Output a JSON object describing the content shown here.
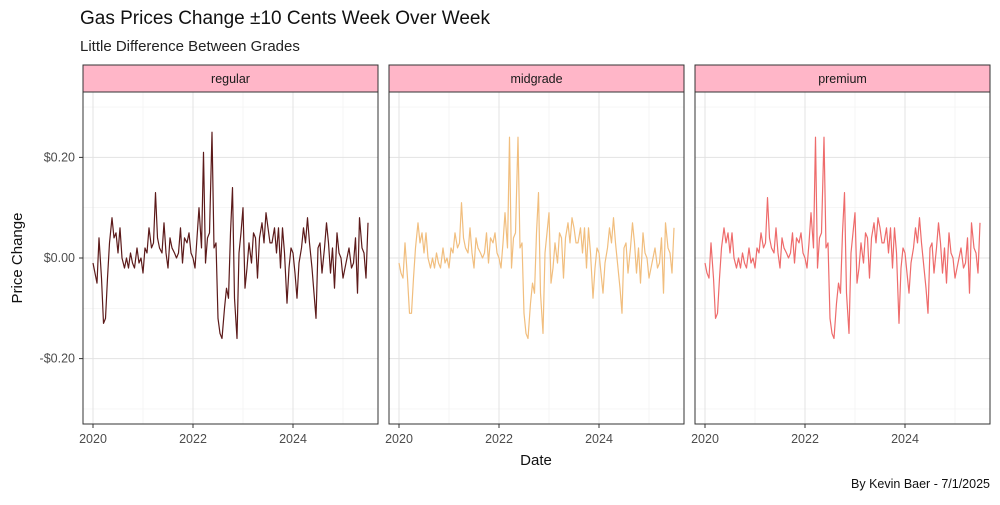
{
  "chart_data": {
    "type": "line",
    "title": "Gas Prices Change ±10 Cents Week Over Week",
    "subtitle": "Little Difference Between Grades",
    "xlabel": "Date",
    "ylabel": "Price Change",
    "caption": "By Kevin Baer - 7/1/2025",
    "ylim": [
      -0.33,
      0.33
    ],
    "xlim": [
      2019.8,
      2025.7
    ],
    "y_ticks": [
      -0.2,
      0.0,
      0.2
    ],
    "y_tick_labels": [
      "-$0.20",
      "$0.00",
      "$0.20"
    ],
    "x_ticks": [
      2020,
      2022,
      2024
    ],
    "x_tick_labels": [
      "2020",
      "2022",
      "2024"
    ],
    "grid": true,
    "strip_color": "#FFB6C8",
    "panels": [
      {
        "name": "regular",
        "color": "#5C1A1A",
        "x": [
          2020.0,
          2020.04,
          2020.08,
          2020.12,
          2020.17,
          2020.21,
          2020.25,
          2020.29,
          2020.33,
          2020.38,
          2020.42,
          2020.46,
          2020.5,
          2020.54,
          2020.58,
          2020.63,
          2020.67,
          2020.71,
          2020.75,
          2020.79,
          2020.83,
          2020.88,
          2020.92,
          2020.96,
          2021.0,
          2021.04,
          2021.08,
          2021.12,
          2021.17,
          2021.21,
          2021.25,
          2021.29,
          2021.33,
          2021.38,
          2021.42,
          2021.46,
          2021.5,
          2021.54,
          2021.58,
          2021.63,
          2021.67,
          2021.71,
          2021.75,
          2021.79,
          2021.83,
          2021.88,
          2021.92,
          2021.96,
          2022.0,
          2022.04,
          2022.08,
          2022.12,
          2022.17,
          2022.21,
          2022.25,
          2022.29,
          2022.33,
          2022.38,
          2022.42,
          2022.46,
          2022.5,
          2022.54,
          2022.58,
          2022.63,
          2022.67,
          2022.71,
          2022.75,
          2022.79,
          2022.83,
          2022.88,
          2022.92,
          2022.96,
          2023.0,
          2023.04,
          2023.08,
          2023.12,
          2023.17,
          2023.21,
          2023.25,
          2023.29,
          2023.33,
          2023.38,
          2023.42,
          2023.46,
          2023.5,
          2023.54,
          2023.58,
          2023.63,
          2023.67,
          2023.71,
          2023.75,
          2023.79,
          2023.83,
          2023.88,
          2023.92,
          2023.96,
          2024.0,
          2024.04,
          2024.08,
          2024.12,
          2024.17,
          2024.21,
          2024.25,
          2024.29,
          2024.33,
          2024.38,
          2024.42,
          2024.46,
          2024.5,
          2024.54,
          2024.58,
          2024.63,
          2024.67,
          2024.71,
          2024.75,
          2024.79,
          2024.83,
          2024.88,
          2024.92,
          2024.96,
          2025.0,
          2025.04,
          2025.08,
          2025.12,
          2025.17,
          2025.21,
          2025.25,
          2025.29,
          2025.33,
          2025.38,
          2025.42,
          2025.46,
          2025.5
        ],
        "y": [
          -0.01,
          -0.03,
          -0.05,
          0.04,
          -0.04,
          -0.13,
          -0.12,
          -0.04,
          0.03,
          0.08,
          0.04,
          0.05,
          0.01,
          0.06,
          0.0,
          -0.02,
          0.0,
          -0.02,
          0.01,
          -0.01,
          -0.02,
          0.02,
          -0.01,
          0.0,
          -0.03,
          0.02,
          0.01,
          0.06,
          0.02,
          0.03,
          0.13,
          0.04,
          0.02,
          0.01,
          0.07,
          0.01,
          -0.02,
          0.04,
          0.02,
          0.01,
          0.0,
          0.01,
          0.06,
          -0.01,
          0.04,
          0.03,
          0.05,
          0.01,
          0.0,
          -0.02,
          0.04,
          0.1,
          0.02,
          0.21,
          -0.01,
          0.04,
          0.05,
          0.25,
          0.02,
          0.03,
          -0.12,
          -0.15,
          -0.16,
          -0.1,
          -0.06,
          -0.08,
          0.05,
          0.14,
          -0.08,
          -0.16,
          0.01,
          0.05,
          0.1,
          -0.06,
          -0.02,
          0.03,
          -0.01,
          0.05,
          0.04,
          -0.04,
          0.04,
          0.07,
          0.03,
          0.09,
          0.06,
          0.03,
          0.03,
          0.06,
          0.01,
          0.06,
          -0.02,
          0.06,
          0.01,
          -0.09,
          -0.02,
          0.02,
          0.01,
          -0.03,
          -0.08,
          -0.01,
          0.02,
          0.06,
          0.03,
          0.08,
          0.03,
          -0.02,
          -0.07,
          -0.12,
          0.02,
          0.03,
          -0.03,
          0.02,
          0.07,
          0.03,
          -0.03,
          0.02,
          -0.06,
          0.05,
          0.01,
          0.0,
          -0.04,
          -0.02,
          0.0,
          0.02,
          -0.02,
          -0.01,
          0.04,
          -0.07,
          0.08,
          0.02,
          0.01,
          -0.04,
          0.07
        ]
      },
      {
        "name": "midgrade",
        "color": "#F1BE7E",
        "x": [
          2020.0,
          2020.04,
          2020.08,
          2020.12,
          2020.17,
          2020.21,
          2020.25,
          2020.29,
          2020.33,
          2020.38,
          2020.42,
          2020.46,
          2020.5,
          2020.54,
          2020.58,
          2020.63,
          2020.67,
          2020.71,
          2020.75,
          2020.79,
          2020.83,
          2020.88,
          2020.92,
          2020.96,
          2021.0,
          2021.04,
          2021.08,
          2021.12,
          2021.17,
          2021.21,
          2021.25,
          2021.29,
          2021.33,
          2021.38,
          2021.42,
          2021.46,
          2021.5,
          2021.54,
          2021.58,
          2021.63,
          2021.67,
          2021.71,
          2021.75,
          2021.79,
          2021.83,
          2021.88,
          2021.92,
          2021.96,
          2022.0,
          2022.04,
          2022.08,
          2022.12,
          2022.17,
          2022.21,
          2022.25,
          2022.29,
          2022.33,
          2022.38,
          2022.42,
          2022.46,
          2022.5,
          2022.54,
          2022.58,
          2022.63,
          2022.67,
          2022.71,
          2022.75,
          2022.79,
          2022.83,
          2022.88,
          2022.92,
          2022.96,
          2023.0,
          2023.04,
          2023.08,
          2023.12,
          2023.17,
          2023.21,
          2023.25,
          2023.29,
          2023.33,
          2023.38,
          2023.42,
          2023.46,
          2023.5,
          2023.54,
          2023.58,
          2023.63,
          2023.67,
          2023.71,
          2023.75,
          2023.79,
          2023.83,
          2023.88,
          2023.92,
          2023.96,
          2024.0,
          2024.04,
          2024.08,
          2024.12,
          2024.17,
          2024.21,
          2024.25,
          2024.29,
          2024.33,
          2024.38,
          2024.42,
          2024.46,
          2024.5,
          2024.54,
          2024.58,
          2024.63,
          2024.67,
          2024.71,
          2024.75,
          2024.79,
          2024.83,
          2024.88,
          2024.92,
          2024.96,
          2025.0,
          2025.04,
          2025.08,
          2025.12,
          2025.17,
          2025.21,
          2025.25,
          2025.29,
          2025.33,
          2025.38,
          2025.42,
          2025.46,
          2025.5
        ],
        "y": [
          -0.01,
          -0.03,
          -0.04,
          0.03,
          -0.04,
          -0.11,
          -0.11,
          -0.04,
          0.02,
          0.07,
          0.03,
          0.05,
          0.01,
          0.05,
          0.0,
          -0.02,
          0.0,
          -0.02,
          0.01,
          -0.01,
          -0.02,
          0.02,
          -0.01,
          0.0,
          -0.02,
          0.02,
          0.01,
          0.05,
          0.02,
          0.03,
          0.11,
          0.04,
          0.02,
          0.01,
          0.06,
          0.01,
          -0.02,
          0.04,
          0.02,
          0.01,
          0.0,
          0.01,
          0.05,
          -0.01,
          0.04,
          0.03,
          0.05,
          0.01,
          0.0,
          -0.02,
          0.03,
          0.09,
          0.02,
          0.24,
          -0.02,
          0.04,
          0.05,
          0.24,
          0.02,
          0.03,
          -0.11,
          -0.15,
          -0.16,
          -0.09,
          -0.05,
          -0.07,
          0.05,
          0.13,
          -0.07,
          -0.15,
          0.01,
          0.05,
          0.09,
          -0.05,
          -0.02,
          0.03,
          -0.01,
          0.05,
          0.04,
          -0.04,
          0.04,
          0.07,
          0.03,
          0.08,
          0.06,
          0.03,
          0.03,
          0.06,
          0.01,
          0.06,
          -0.02,
          0.06,
          0.01,
          -0.08,
          -0.02,
          0.02,
          0.01,
          -0.03,
          -0.07,
          -0.01,
          0.02,
          0.06,
          0.03,
          0.08,
          0.03,
          -0.02,
          -0.06,
          -0.11,
          0.02,
          0.03,
          -0.03,
          0.02,
          0.07,
          0.03,
          -0.03,
          0.02,
          -0.05,
          0.05,
          0.01,
          0.0,
          -0.04,
          -0.02,
          0.0,
          0.02,
          -0.02,
          -0.01,
          0.04,
          -0.07,
          0.07,
          0.02,
          0.01,
          -0.03,
          0.06
        ]
      },
      {
        "name": "premium",
        "color": "#EE6B6B",
        "x": [
          2020.0,
          2020.04,
          2020.08,
          2020.12,
          2020.17,
          2020.21,
          2020.25,
          2020.29,
          2020.33,
          2020.38,
          2020.42,
          2020.46,
          2020.5,
          2020.54,
          2020.58,
          2020.63,
          2020.67,
          2020.71,
          2020.75,
          2020.79,
          2020.83,
          2020.88,
          2020.92,
          2020.96,
          2021.0,
          2021.04,
          2021.08,
          2021.12,
          2021.17,
          2021.21,
          2021.25,
          2021.29,
          2021.33,
          2021.38,
          2021.42,
          2021.46,
          2021.5,
          2021.54,
          2021.58,
          2021.63,
          2021.67,
          2021.71,
          2021.75,
          2021.79,
          2021.83,
          2021.88,
          2021.92,
          2021.96,
          2022.0,
          2022.04,
          2022.08,
          2022.12,
          2022.17,
          2022.21,
          2022.25,
          2022.29,
          2022.33,
          2022.38,
          2022.42,
          2022.46,
          2022.5,
          2022.54,
          2022.58,
          2022.63,
          2022.67,
          2022.71,
          2022.75,
          2022.79,
          2022.83,
          2022.88,
          2022.92,
          2022.96,
          2023.0,
          2023.04,
          2023.08,
          2023.12,
          2023.17,
          2023.21,
          2023.25,
          2023.29,
          2023.33,
          2023.38,
          2023.42,
          2023.46,
          2023.5,
          2023.54,
          2023.58,
          2023.63,
          2023.67,
          2023.71,
          2023.75,
          2023.79,
          2023.83,
          2023.88,
          2023.92,
          2023.96,
          2024.0,
          2024.04,
          2024.08,
          2024.12,
          2024.17,
          2024.21,
          2024.25,
          2024.29,
          2024.33,
          2024.38,
          2024.42,
          2024.46,
          2024.5,
          2024.54,
          2024.58,
          2024.63,
          2024.67,
          2024.71,
          2024.75,
          2024.79,
          2024.83,
          2024.88,
          2024.92,
          2024.96,
          2025.0,
          2025.04,
          2025.08,
          2025.12,
          2025.17,
          2025.21,
          2025.25,
          2025.29,
          2025.33,
          2025.38,
          2025.42,
          2025.46,
          2025.5
        ],
        "y": [
          -0.01,
          -0.03,
          -0.04,
          0.03,
          -0.04,
          -0.12,
          -0.11,
          -0.04,
          0.02,
          0.06,
          0.03,
          0.05,
          0.01,
          0.05,
          0.0,
          -0.02,
          0.0,
          -0.02,
          0.01,
          -0.01,
          -0.02,
          0.02,
          -0.01,
          0.0,
          -0.02,
          0.02,
          0.01,
          0.05,
          0.02,
          0.03,
          0.12,
          0.04,
          0.02,
          0.01,
          0.06,
          0.01,
          -0.02,
          0.04,
          0.02,
          0.01,
          0.0,
          0.01,
          0.05,
          -0.01,
          0.04,
          0.03,
          0.05,
          0.01,
          0.0,
          -0.02,
          0.03,
          0.09,
          0.02,
          0.24,
          -0.02,
          0.04,
          0.05,
          0.24,
          0.02,
          0.03,
          -0.12,
          -0.15,
          -0.16,
          -0.09,
          -0.05,
          -0.07,
          0.05,
          0.13,
          -0.07,
          -0.15,
          0.01,
          0.05,
          0.09,
          -0.05,
          -0.02,
          0.03,
          -0.01,
          0.05,
          0.04,
          -0.04,
          0.04,
          0.07,
          0.03,
          0.08,
          0.06,
          0.03,
          0.03,
          0.06,
          0.01,
          0.06,
          -0.02,
          0.06,
          0.01,
          -0.13,
          -0.02,
          0.02,
          0.01,
          -0.03,
          -0.07,
          -0.01,
          0.02,
          0.06,
          0.03,
          0.08,
          0.03,
          -0.02,
          -0.06,
          -0.11,
          0.02,
          0.03,
          -0.03,
          0.02,
          0.07,
          0.03,
          -0.03,
          0.02,
          -0.05,
          0.05,
          0.01,
          0.0,
          -0.04,
          -0.02,
          0.0,
          0.02,
          -0.02,
          -0.01,
          0.04,
          -0.07,
          0.07,
          0.02,
          0.01,
          -0.03,
          0.07
        ]
      }
    ]
  }
}
